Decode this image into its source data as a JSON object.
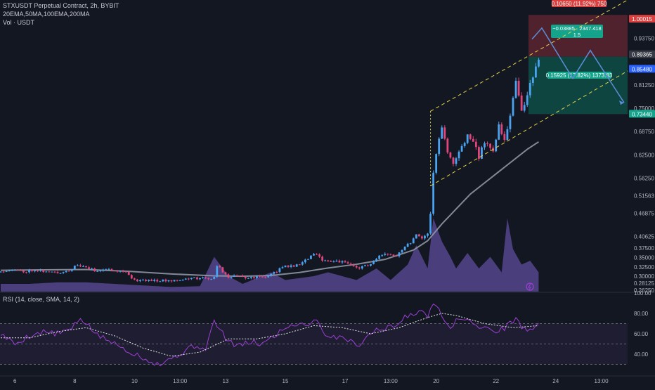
{
  "header": {
    "symbol_line": "STXUSDT Perpetual Contract, 2h, BYBIT",
    "indicators_line": "20EMA,50MA,100EMA,200MA",
    "volume_line": "Vol · USDT",
    "rsi_line": "RSI (14, close, SMA, 14, 2)"
  },
  "colors": {
    "background": "#131722",
    "candle_up": "#4aa3f0",
    "candle_down": "#e0457b",
    "ma_line": "#8f96a3",
    "channel": "#e2d34a",
    "projection": "#5b8dd6",
    "stop_zone": "#5a2530",
    "target_zone": "#0f4d45",
    "rsi_line": "#9c3fd3",
    "rsi_sma": "#e6e6e6",
    "volume_fill": "#7a5ec8"
  },
  "price_axis": {
    "ticks": [
      "0.93750",
      "0.81250",
      "0.75000",
      "0.68750",
      "0.62500",
      "0.56250",
      "0.51563",
      "0.46875",
      "0.40625",
      "0.37500",
      "0.35000",
      "0.32500",
      "0.30000",
      "0.28125",
      "0.26250"
    ],
    "price_high": 1.00015,
    "price_high_label": "1.00015",
    "price_current": 0.89365,
    "price_current_label": "0.89365",
    "price_mark": 0.8548,
    "price_mark_label": "0.85480",
    "price_target": 0.7344,
    "price_target_label": "0.73440"
  },
  "rsi_axis": {
    "ticks": [
      "100.00",
      "80.00",
      "60.00",
      "40.00"
    ]
  },
  "time_axis": {
    "labels": [
      "6",
      "8",
      "10",
      "13:00",
      "13",
      "15",
      "17",
      "13:00",
      "20",
      "22",
      "24",
      "13:00"
    ]
  },
  "position_tool": {
    "stop_label": "0.10650 (11.92%) 750",
    "risk_reward_label": "−0.03885 · 2347.418",
    "ratio_label": "1.5",
    "target_label": "0.15925 (17.82%) 1373.83"
  },
  "chart_data": {
    "type": "candlestick",
    "ylim": [
      0.2587,
      1.04
    ],
    "rsi_ylim": [
      20,
      100
    ],
    "x_range": [
      0,
      189
    ],
    "time_labels": [
      {
        "x": 5,
        "text": "6"
      },
      {
        "x": 26,
        "text": "8"
      },
      {
        "x": 47,
        "text": "10"
      },
      {
        "x": 63,
        "text": "13:00"
      },
      {
        "x": 79,
        "text": "13"
      },
      {
        "x": 100,
        "text": "15"
      },
      {
        "x": 121,
        "text": "17"
      },
      {
        "x": 137,
        "text": "13:00"
      },
      {
        "x": 153,
        "text": "20"
      },
      {
        "x": 174,
        "text": "22"
      },
      {
        "x": 195,
        "text": "24"
      },
      {
        "x": 211,
        "text": "13:00"
      }
    ],
    "close_anchors": [
      [
        0,
        0.314
      ],
      [
        4,
        0.318
      ],
      [
        8,
        0.312
      ],
      [
        12,
        0.318
      ],
      [
        16,
        0.312
      ],
      [
        20,
        0.309
      ],
      [
        24,
        0.316
      ],
      [
        27,
        0.33
      ],
      [
        30,
        0.323
      ],
      [
        33,
        0.315
      ],
      [
        36,
        0.318
      ],
      [
        40,
        0.317
      ],
      [
        44,
        0.312
      ],
      [
        46,
        0.295
      ],
      [
        48,
        0.288
      ],
      [
        52,
        0.29
      ],
      [
        56,
        0.288
      ],
      [
        60,
        0.289
      ],
      [
        64,
        0.292
      ],
      [
        68,
        0.295
      ],
      [
        72,
        0.294
      ],
      [
        75,
        0.296
      ],
      [
        76,
        0.33
      ],
      [
        78,
        0.312
      ],
      [
        80,
        0.296
      ],
      [
        82,
        0.303
      ],
      [
        86,
        0.296
      ],
      [
        90,
        0.298
      ],
      [
        94,
        0.3
      ],
      [
        97,
        0.314
      ],
      [
        100,
        0.328
      ],
      [
        103,
        0.326
      ],
      [
        107,
        0.342
      ],
      [
        110,
        0.36
      ],
      [
        113,
        0.345
      ],
      [
        116,
        0.34
      ],
      [
        119,
        0.34
      ],
      [
        122,
        0.332
      ],
      [
        126,
        0.322
      ],
      [
        130,
        0.333
      ],
      [
        133,
        0.352
      ],
      [
        136,
        0.36
      ],
      [
        139,
        0.357
      ],
      [
        142,
        0.38
      ],
      [
        144,
        0.392
      ],
      [
        146,
        0.412
      ],
      [
        148,
        0.405
      ],
      [
        150,
        0.412
      ],
      [
        151,
        0.47
      ],
      [
        152,
        0.58
      ],
      [
        153,
        0.63
      ],
      [
        155,
        0.7
      ],
      [
        157,
        0.63
      ],
      [
        159,
        0.6
      ],
      [
        161,
        0.63
      ],
      [
        164,
        0.68
      ],
      [
        166,
        0.66
      ],
      [
        168,
        0.62
      ],
      [
        170,
        0.66
      ],
      [
        173,
        0.64
      ],
      [
        175,
        0.7
      ],
      [
        177,
        0.66
      ],
      [
        179,
        0.73
      ],
      [
        181,
        0.82
      ],
      [
        183,
        0.75
      ],
      [
        185,
        0.78
      ],
      [
        187,
        0.84
      ],
      [
        189,
        0.88
      ]
    ],
    "ma_line": [
      [
        0,
        0.316
      ],
      [
        15,
        0.317
      ],
      [
        30,
        0.318
      ],
      [
        45,
        0.313
      ],
      [
        60,
        0.306
      ],
      [
        75,
        0.301
      ],
      [
        85,
        0.3
      ],
      [
        95,
        0.302
      ],
      [
        105,
        0.31
      ],
      [
        115,
        0.322
      ],
      [
        125,
        0.332
      ],
      [
        135,
        0.345
      ],
      [
        145,
        0.37
      ],
      [
        150,
        0.395
      ],
      [
        155,
        0.44
      ],
      [
        160,
        0.48
      ],
      [
        165,
        0.52
      ],
      [
        170,
        0.55
      ],
      [
        175,
        0.58
      ],
      [
        180,
        0.61
      ],
      [
        185,
        0.64
      ],
      [
        189,
        0.66
      ]
    ],
    "volume": [
      [
        0,
        0.1
      ],
      [
        10,
        0.1
      ],
      [
        20,
        0.12
      ],
      [
        30,
        0.12
      ],
      [
        40,
        0.1
      ],
      [
        50,
        0.08
      ],
      [
        60,
        0.06
      ],
      [
        70,
        0.07
      ],
      [
        75,
        0.45
      ],
      [
        78,
        0.3
      ],
      [
        80,
        0.2
      ],
      [
        85,
        0.1
      ],
      [
        95,
        0.25
      ],
      [
        100,
        0.15
      ],
      [
        110,
        0.2
      ],
      [
        115,
        0.25
      ],
      [
        125,
        0.15
      ],
      [
        132,
        0.3
      ],
      [
        137,
        0.15
      ],
      [
        143,
        0.35
      ],
      [
        146,
        0.6
      ],
      [
        150,
        0.3
      ],
      [
        152,
        0.95
      ],
      [
        155,
        0.65
      ],
      [
        158,
        0.45
      ],
      [
        160,
        0.3
      ],
      [
        164,
        0.5
      ],
      [
        168,
        0.3
      ],
      [
        172,
        0.45
      ],
      [
        176,
        0.25
      ],
      [
        178,
        0.95
      ],
      [
        180,
        0.55
      ],
      [
        183,
        0.35
      ],
      [
        186,
        0.4
      ],
      [
        189,
        0.25
      ]
    ],
    "rsi": [
      [
        0,
        60
      ],
      [
        5,
        50
      ],
      [
        10,
        58
      ],
      [
        15,
        62
      ],
      [
        20,
        60
      ],
      [
        25,
        65
      ],
      [
        28,
        75
      ],
      [
        31,
        68
      ],
      [
        34,
        58
      ],
      [
        37,
        55
      ],
      [
        40,
        50
      ],
      [
        43,
        46
      ],
      [
        46,
        42
      ],
      [
        49,
        38
      ],
      [
        52,
        34
      ],
      [
        56,
        30
      ],
      [
        60,
        36
      ],
      [
        64,
        42
      ],
      [
        68,
        48
      ],
      [
        72,
        46
      ],
      [
        75,
        72
      ],
      [
        77,
        64
      ],
      [
        80,
        52
      ],
      [
        84,
        48
      ],
      [
        88,
        52
      ],
      [
        92,
        50
      ],
      [
        96,
        58
      ],
      [
        100,
        66
      ],
      [
        104,
        70
      ],
      [
        108,
        70
      ],
      [
        111,
        74
      ],
      [
        114,
        60
      ],
      [
        117,
        56
      ],
      [
        120,
        58
      ],
      [
        123,
        52
      ],
      [
        126,
        50
      ],
      [
        129,
        58
      ],
      [
        132,
        64
      ],
      [
        135,
        66
      ],
      [
        138,
        66
      ],
      [
        142,
        76
      ],
      [
        146,
        82
      ],
      [
        150,
        78
      ],
      [
        152,
        92
      ],
      [
        154,
        86
      ],
      [
        156,
        70
      ],
      [
        158,
        68
      ],
      [
        160,
        72
      ],
      [
        163,
        76
      ],
      [
        166,
        70
      ],
      [
        169,
        64
      ],
      [
        172,
        66
      ],
      [
        175,
        62
      ],
      [
        178,
        68
      ],
      [
        181,
        76
      ],
      [
        183,
        66
      ],
      [
        186,
        64
      ],
      [
        189,
        68
      ]
    ],
    "rsi_sma": [
      [
        0,
        56
      ],
      [
        10,
        56
      ],
      [
        20,
        62
      ],
      [
        30,
        66
      ],
      [
        40,
        58
      ],
      [
        50,
        46
      ],
      [
        60,
        38
      ],
      [
        70,
        42
      ],
      [
        80,
        55
      ],
      [
        90,
        55
      ],
      [
        100,
        60
      ],
      [
        110,
        68
      ],
      [
        120,
        66
      ],
      [
        130,
        60
      ],
      [
        140,
        66
      ],
      [
        150,
        76
      ],
      [
        155,
        80
      ],
      [
        160,
        78
      ],
      [
        170,
        70
      ],
      [
        180,
        66
      ],
      [
        189,
        68
      ]
    ]
  }
}
